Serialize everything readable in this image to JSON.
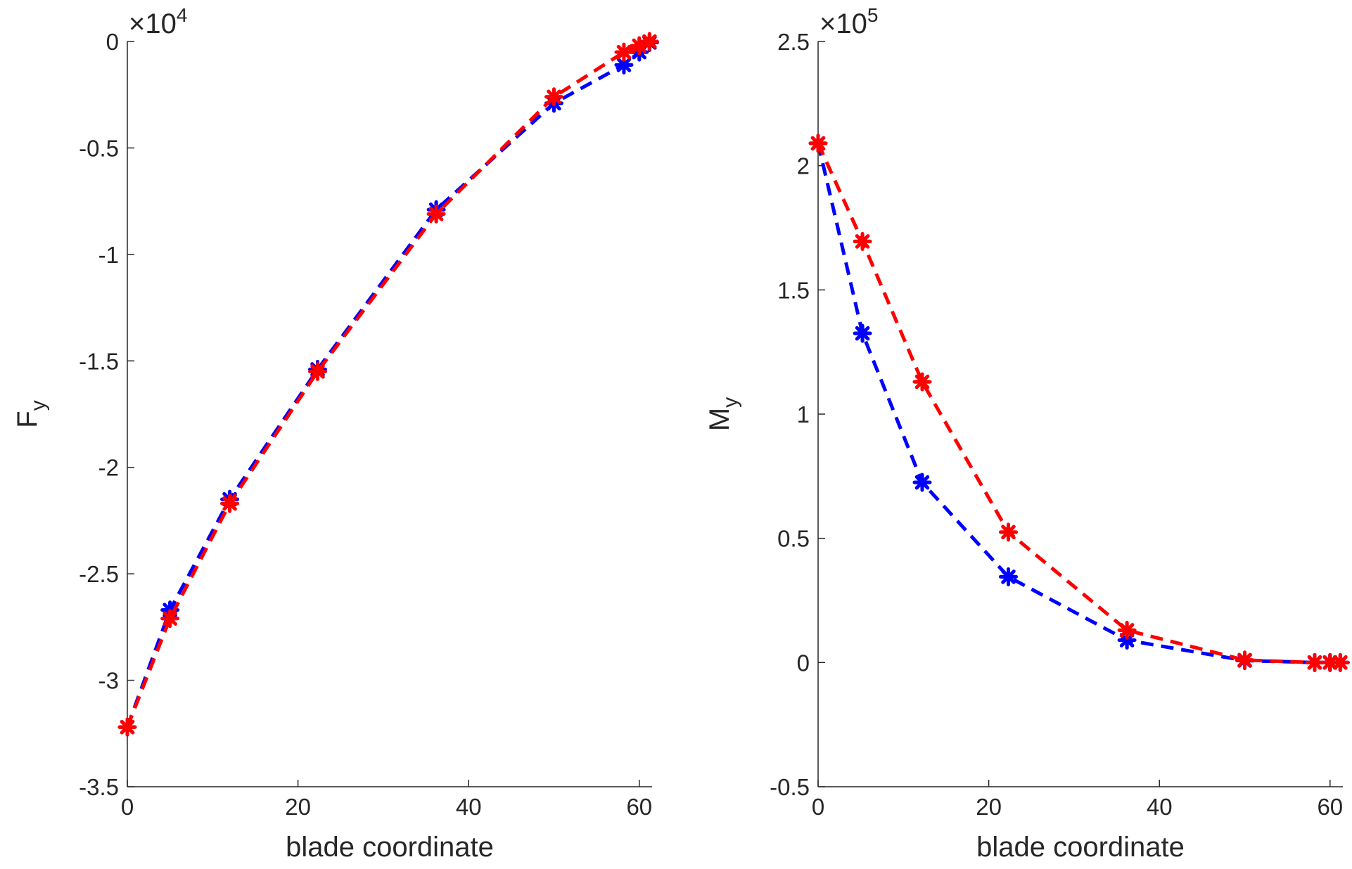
{
  "chart_data": [
    {
      "type": "line",
      "xlabel": "blade coordinate",
      "ylabel": "F",
      "ylabel_sub": "y",
      "exponent_label": "×10",
      "exponent_power": "4",
      "xlim": [
        0,
        61.5
      ],
      "ylim": [
        -35000,
        0
      ],
      "x_ticks": [
        0,
        20,
        40,
        60
      ],
      "x_tick_labels": [
        "0",
        "20",
        "40",
        "60"
      ],
      "y_ticks": [
        0,
        -5000,
        -10000,
        -15000,
        -20000,
        -25000,
        -30000,
        -35000
      ],
      "y_tick_labels": [
        "0",
        "-0.5",
        "-1",
        "-1.5",
        "-2",
        "-2.5",
        "-3",
        "-3.5"
      ],
      "grid": false,
      "legend": "none",
      "line_style": "dashed",
      "marker": "asterisk",
      "series": [
        {
          "color": "#0000ff",
          "x": [
            0,
            5,
            12,
            22.3,
            36.2,
            50,
            58.2,
            60,
            61.2
          ],
          "y": [
            -32200,
            -26700,
            -21500,
            -15400,
            -7900,
            -2900,
            -1100,
            -500,
            -50
          ]
        },
        {
          "color": "#ff0000",
          "x": [
            0,
            5,
            12,
            22.3,
            36.2,
            50,
            58.2,
            60,
            61.2
          ],
          "y": [
            -32200,
            -27100,
            -21700,
            -15500,
            -8100,
            -2600,
            -500,
            -200,
            0
          ]
        }
      ]
    },
    {
      "type": "line",
      "xlabel": "blade coordinate",
      "ylabel": "M",
      "ylabel_sub": "y",
      "exponent_label": "×10",
      "exponent_power": "5",
      "xlim": [
        0,
        61.5
      ],
      "ylim": [
        -50000,
        250000
      ],
      "x_ticks": [
        0,
        20,
        40,
        60
      ],
      "x_tick_labels": [
        "0",
        "20",
        "40",
        "60"
      ],
      "y_ticks": [
        250000,
        200000,
        150000,
        100000,
        50000,
        0,
        -50000
      ],
      "y_tick_labels": [
        "2.5",
        "2",
        "1.5",
        "1",
        "0.5",
        "0",
        "-0.5"
      ],
      "grid": false,
      "legend": "none",
      "line_style": "dashed",
      "marker": "asterisk",
      "series": [
        {
          "color": "#0000ff",
          "x": [
            0,
            5.2,
            12.2,
            22.3,
            36.2,
            50,
            58.2,
            60,
            61.2
          ],
          "y": [
            209000,
            132500,
            72500,
            34500,
            9000,
            800,
            0,
            0,
            0
          ]
        },
        {
          "color": "#ff0000",
          "x": [
            0,
            5.2,
            12.2,
            22.3,
            36.2,
            50,
            58.2,
            60,
            61.2
          ],
          "y": [
            209000,
            169500,
            113000,
            52500,
            13000,
            1000,
            0,
            0,
            0
          ]
        }
      ]
    }
  ]
}
